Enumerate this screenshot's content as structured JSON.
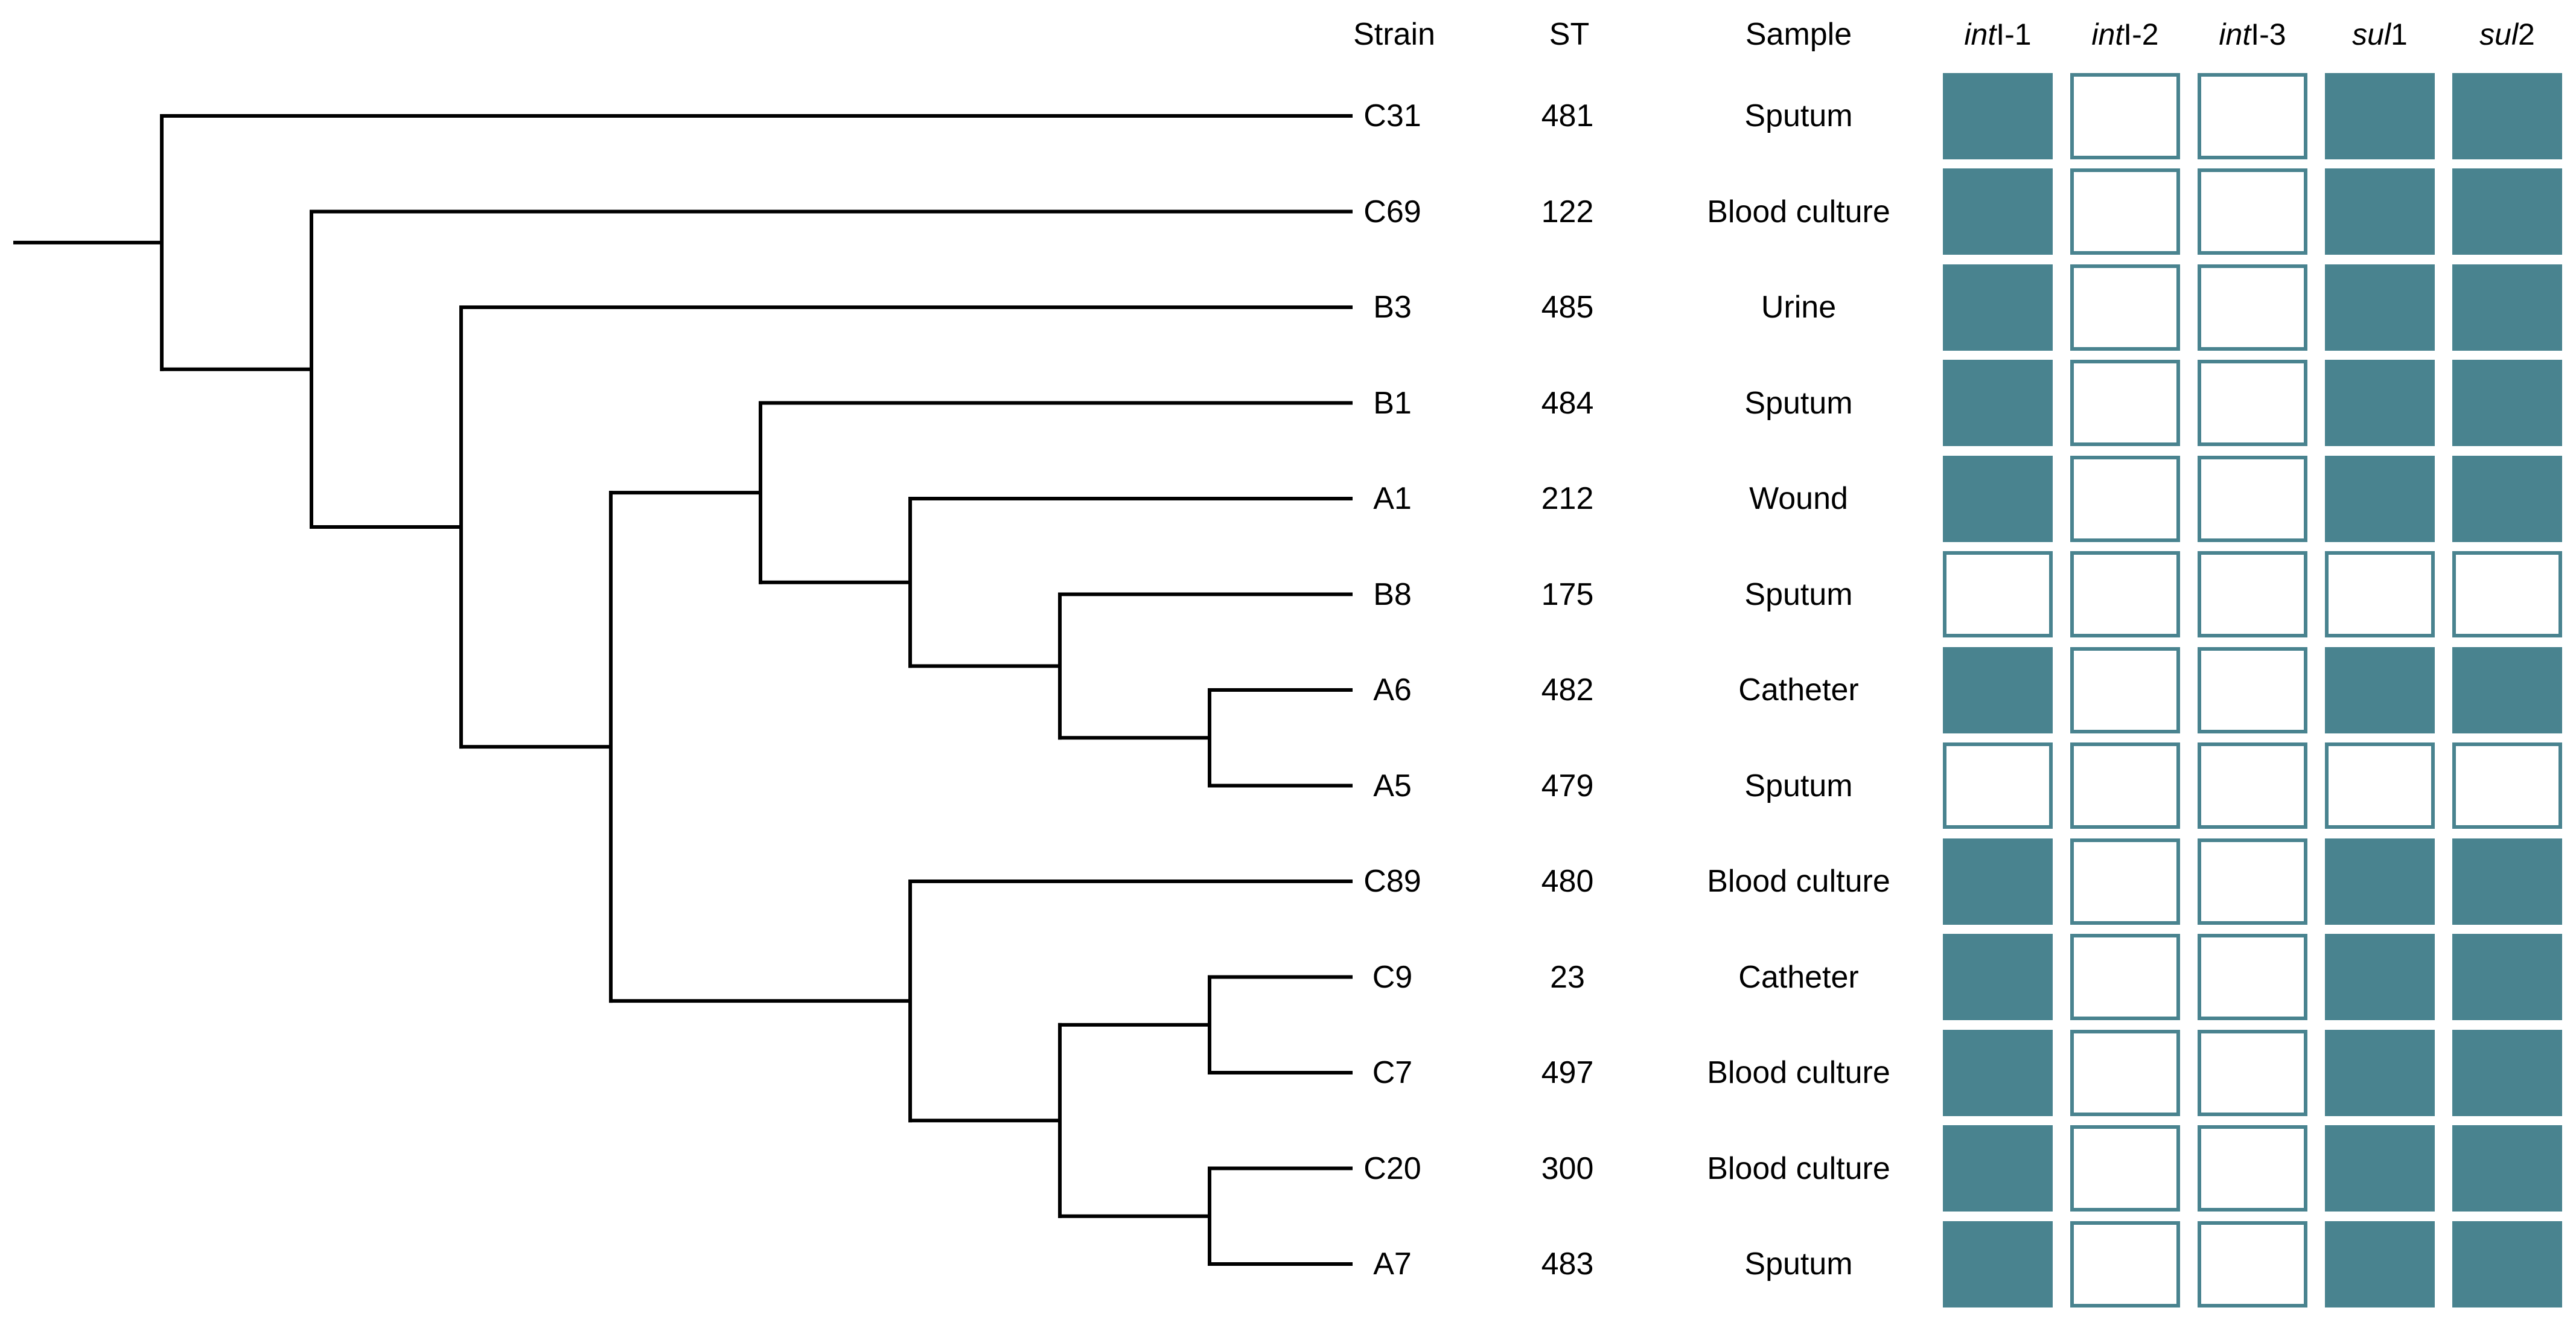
{
  "figure": {
    "background": "#ffffff",
    "tree_line_color": "#000000",
    "text_color": "#000000",
    "gene_present_fill": "#49838F",
    "gene_absent_border": "#49838F"
  },
  "headers": {
    "strain": "Strain",
    "st": "ST",
    "sample": "Sample"
  },
  "gene_columns": [
    {
      "name": "intI-1",
      "italic": "int",
      "regular": "I-1"
    },
    {
      "name": "intI-2",
      "italic": "int",
      "regular": "I-2"
    },
    {
      "name": "intI-3",
      "italic": "int",
      "regular": "I-3"
    },
    {
      "name": "sul1",
      "italic": "sul",
      "regular": "1"
    },
    {
      "name": "sul2",
      "italic": "sul",
      "regular": "2"
    }
  ],
  "rows": [
    {
      "strain": "C31",
      "st": "481",
      "sample": "Sputum",
      "genes": [
        1,
        0,
        0,
        1,
        1
      ]
    },
    {
      "strain": "C69",
      "st": "122",
      "sample": "Blood culture",
      "genes": [
        1,
        0,
        0,
        1,
        1
      ]
    },
    {
      "strain": "B3",
      "st": "485",
      "sample": "Urine",
      "genes": [
        1,
        0,
        0,
        1,
        1
      ]
    },
    {
      "strain": "B1",
      "st": "484",
      "sample": "Sputum",
      "genes": [
        1,
        0,
        0,
        1,
        1
      ]
    },
    {
      "strain": "A1",
      "st": "212",
      "sample": "Wound",
      "genes": [
        1,
        0,
        0,
        1,
        1
      ]
    },
    {
      "strain": "B8",
      "st": "175",
      "sample": "Sputum",
      "genes": [
        0,
        0,
        0,
        0,
        0
      ]
    },
    {
      "strain": "A6",
      "st": "482",
      "sample": "Catheter",
      "genes": [
        1,
        0,
        0,
        1,
        1
      ]
    },
    {
      "strain": "A5",
      "st": "479",
      "sample": "Sputum",
      "genes": [
        0,
        0,
        0,
        0,
        0
      ]
    },
    {
      "strain": "C89",
      "st": "480",
      "sample": "Blood culture",
      "genes": [
        1,
        0,
        0,
        1,
        1
      ]
    },
    {
      "strain": "C9",
      "st": "23",
      "sample": "Catheter",
      "genes": [
        1,
        0,
        0,
        1,
        1
      ]
    },
    {
      "strain": "C7",
      "st": "497",
      "sample": "Blood culture",
      "genes": [
        1,
        0,
        0,
        1,
        1
      ]
    },
    {
      "strain": "C20",
      "st": "300",
      "sample": "Blood culture",
      "genes": [
        1,
        0,
        0,
        1,
        1
      ]
    },
    {
      "strain": "A7",
      "st": "483",
      "sample": "Sputum",
      "genes": [
        1,
        0,
        0,
        1,
        1
      ]
    }
  ],
  "tree": {
    "leaves": [
      "C31",
      "C69",
      "B3",
      "B1",
      "A1",
      "B8",
      "A6",
      "A5",
      "C89",
      "C9",
      "C7",
      "C20",
      "A7"
    ],
    "merges": [
      {
        "id": "N1",
        "children": [
          "A6",
          "A5"
        ],
        "level": 1
      },
      {
        "id": "N5",
        "children": [
          "C9",
          "C7"
        ],
        "level": 1
      },
      {
        "id": "N6",
        "children": [
          "C20",
          "A7"
        ],
        "level": 1
      },
      {
        "id": "N2",
        "children": [
          "B8",
          "N1"
        ],
        "level": 2
      },
      {
        "id": "N7",
        "children": [
          "N5",
          "N6"
        ],
        "level": 2
      },
      {
        "id": "N3",
        "children": [
          "A1",
          "N2"
        ],
        "level": 3
      },
      {
        "id": "N8",
        "children": [
          "C89",
          "N7"
        ],
        "level": 3
      },
      {
        "id": "N4",
        "children": [
          "B1",
          "N3"
        ],
        "level": 4
      },
      {
        "id": "N9",
        "children": [
          "N4",
          "N8"
        ],
        "level": 5
      },
      {
        "id": "N10",
        "children": [
          "B3",
          "N9"
        ],
        "level": 6
      },
      {
        "id": "N11",
        "children": [
          "C69",
          "N10"
        ],
        "level": 7
      },
      {
        "id": "N12",
        "children": [
          "C31",
          "N11"
        ],
        "level": 8
      }
    ],
    "root": "N12",
    "newick": "(C31,(C69,(B3,((B1,(A1,(B8,(A6,A5)))),(C89,((C9,C7),(C20,A7)))))));"
  },
  "chart_data": {
    "type": "heatmap",
    "rows": [
      "C31",
      "C69",
      "B3",
      "B1",
      "A1",
      "B8",
      "A6",
      "A5",
      "C89",
      "C9",
      "C7",
      "C20",
      "A7"
    ],
    "columns": [
      "intI-1",
      "intI-2",
      "intI-3",
      "sul1",
      "sul2"
    ],
    "values": [
      [
        1,
        0,
        0,
        1,
        1
      ],
      [
        1,
        0,
        0,
        1,
        1
      ],
      [
        1,
        0,
        0,
        1,
        1
      ],
      [
        1,
        0,
        0,
        1,
        1
      ],
      [
        1,
        0,
        0,
        1,
        1
      ],
      [
        0,
        0,
        0,
        0,
        0
      ],
      [
        1,
        0,
        0,
        1,
        1
      ],
      [
        0,
        0,
        0,
        0,
        0
      ],
      [
        1,
        0,
        0,
        1,
        1
      ],
      [
        1,
        0,
        0,
        1,
        1
      ],
      [
        1,
        0,
        0,
        1,
        1
      ],
      [
        1,
        0,
        0,
        1,
        1
      ],
      [
        1,
        0,
        0,
        1,
        1
      ]
    ]
  }
}
